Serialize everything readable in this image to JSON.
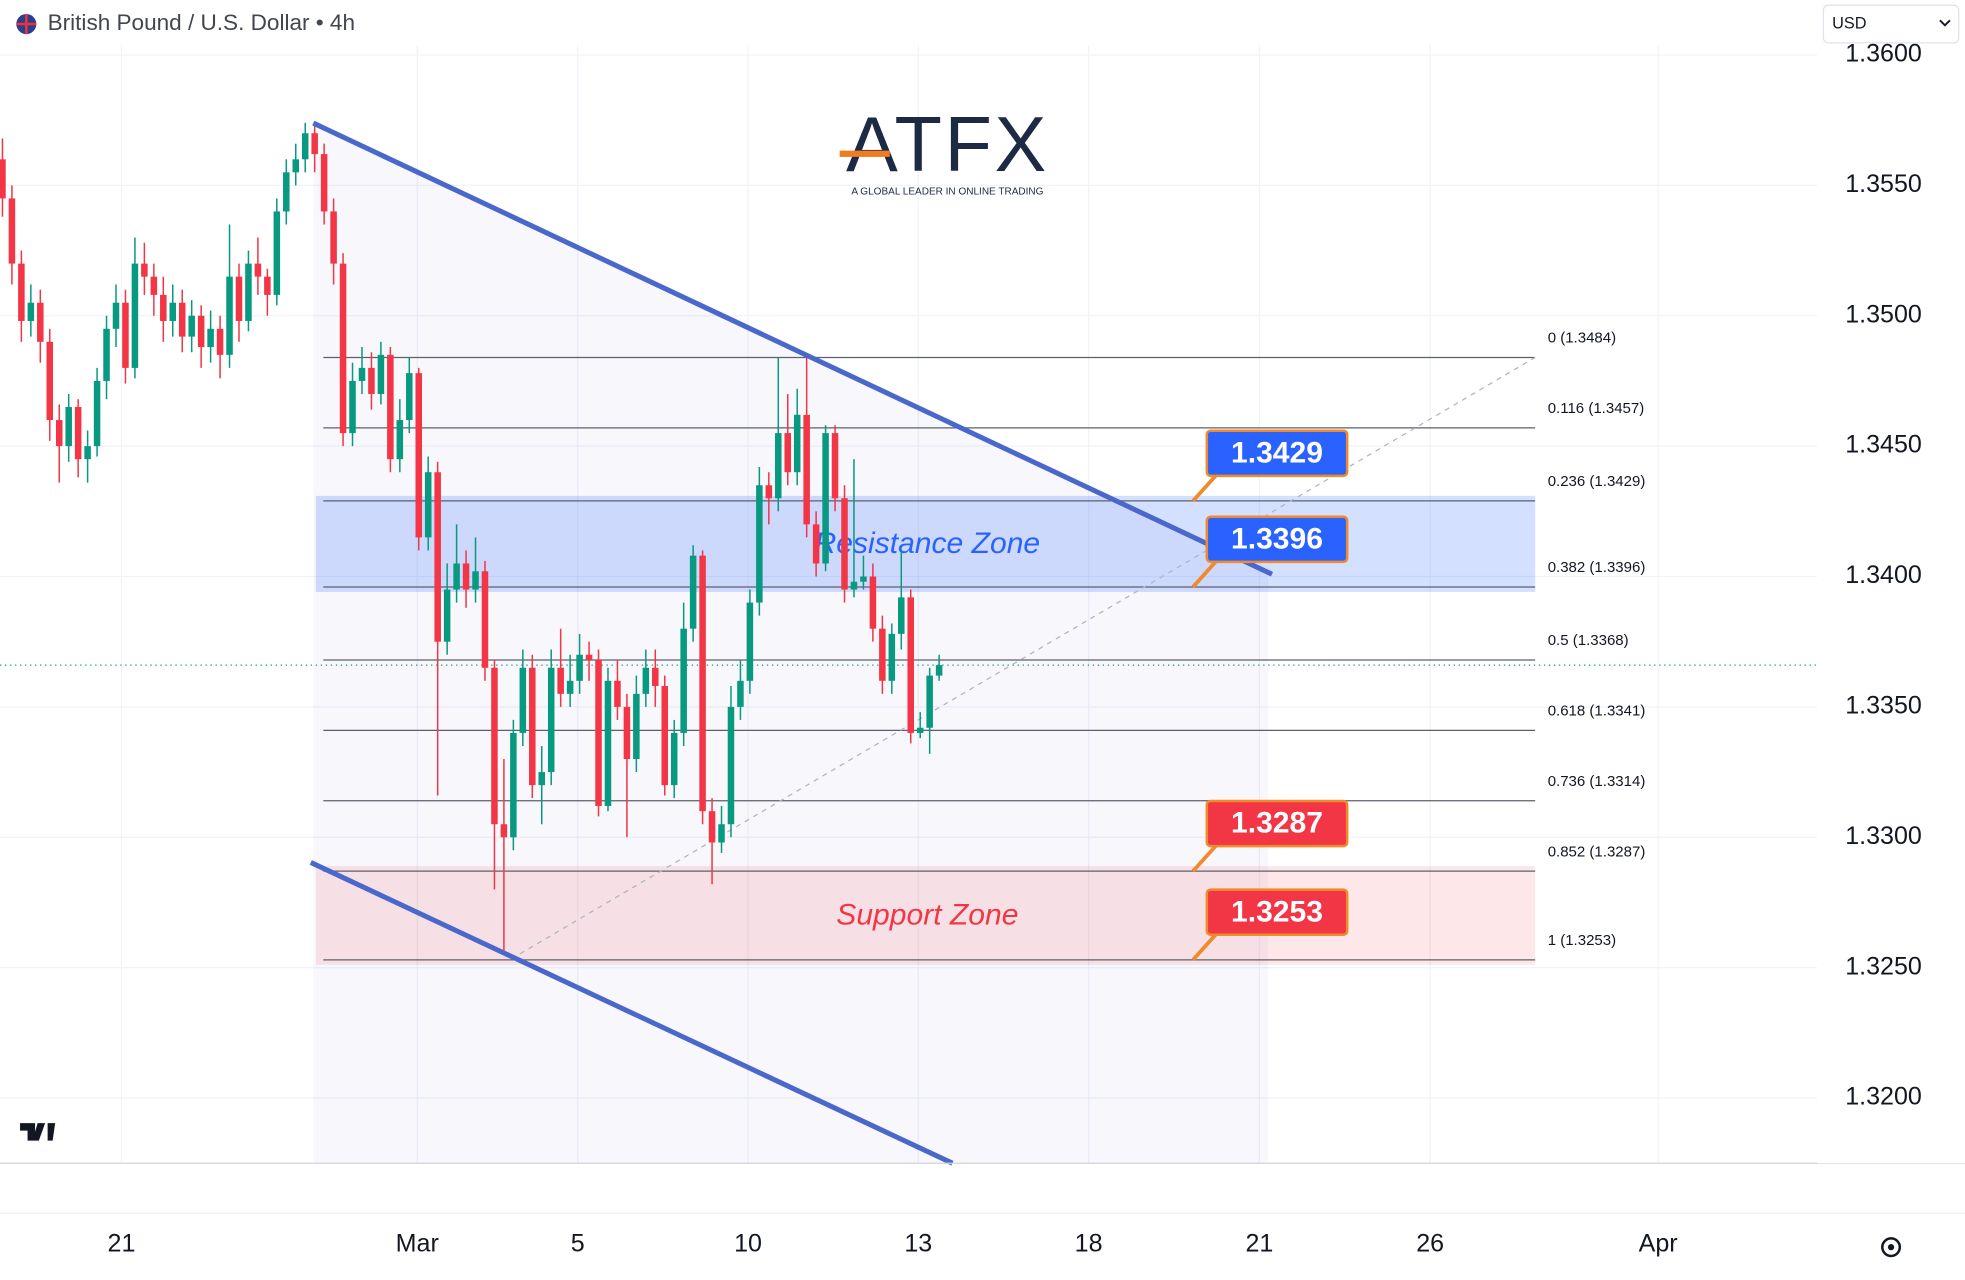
{
  "header": {
    "symbol": "British Pound / U.S. Dollar • 4h",
    "currency": "USD"
  },
  "logo": {
    "name": "ATFX",
    "tagline": "A GLOBAL LEADER IN ONLINE TRADING"
  },
  "chart_data": {
    "type": "candlestick",
    "open": [
      1.356,
      1.3545,
      1.352,
      1.3498,
      1.3505,
      1.349,
      1.346,
      1.345,
      1.3465,
      1.3445,
      1.345,
      1.3475,
      1.3495,
      1.3505,
      1.348,
      1.352,
      1.3515,
      1.3508,
      1.3498,
      1.3505,
      1.3492,
      1.35,
      1.3488,
      1.3495,
      1.3485,
      1.3515,
      1.3498,
      1.352,
      1.3515,
      1.3508,
      1.354,
      1.3555,
      1.356,
      1.357,
      1.3562,
      1.354,
      1.352,
      1.3455,
      1.3475,
      1.348,
      1.347,
      1.3485,
      1.3445,
      1.346,
      1.3478,
      1.3415,
      1.344,
      1.3375,
      1.3395,
      1.3405,
      1.3395,
      1.3402,
      1.3365,
      1.3305,
      1.33,
      1.334,
      1.3365,
      1.332,
      1.3325,
      1.3365,
      1.3355,
      1.336,
      1.337,
      1.3368,
      1.3312,
      1.336,
      1.335,
      1.333,
      1.3355,
      1.3365,
      1.3358,
      1.332,
      1.334,
      1.338,
      1.3408,
      1.331,
      1.3298,
      1.3305,
      1.335,
      1.336,
      1.339,
      1.3435,
      1.343,
      1.3455,
      1.344,
      1.3462,
      1.342,
      1.3405,
      1.3455,
      1.343,
      1.3395,
      1.3398,
      1.34,
      1.338,
      1.336,
      1.3378,
      1.3392,
      1.334,
      1.3342,
      1.3362
    ],
    "high": [
      1.3568,
      1.355,
      1.3525,
      1.3512,
      1.351,
      1.3495,
      1.3466,
      1.347,
      1.3468,
      1.3456,
      1.348,
      1.35,
      1.3512,
      1.351,
      1.353,
      1.3528,
      1.352,
      1.3515,
      1.3512,
      1.351,
      1.3506,
      1.3504,
      1.3502,
      1.35,
      1.3535,
      1.352,
      1.3525,
      1.353,
      1.3518,
      1.3545,
      1.356,
      1.3566,
      1.3574,
      1.3574,
      1.3566,
      1.3545,
      1.3524,
      1.3482,
      1.3488,
      1.3486,
      1.349,
      1.3488,
      1.3468,
      1.3484,
      1.348,
      1.3446,
      1.3444,
      1.3405,
      1.342,
      1.341,
      1.3415,
      1.3406,
      1.3368,
      1.333,
      1.3345,
      1.3372,
      1.337,
      1.3335,
      1.3372,
      1.338,
      1.337,
      1.3378,
      1.3375,
      1.3372,
      1.3365,
      1.3368,
      1.3355,
      1.3362,
      1.3372,
      1.3372,
      1.3362,
      1.3345,
      1.339,
      1.3412,
      1.341,
      1.3315,
      1.3312,
      1.3358,
      1.3368,
      1.3395,
      1.3442,
      1.344,
      1.3484,
      1.347,
      1.3472,
      1.3484,
      1.3425,
      1.3458,
      1.3458,
      1.3435,
      1.3445,
      1.3408,
      1.3405,
      1.3385,
      1.3382,
      1.341,
      1.3395,
      1.3348,
      1.3365,
      1.337
    ],
    "low": [
      1.3538,
      1.3512,
      1.349,
      1.3492,
      1.3482,
      1.3452,
      1.3436,
      1.3444,
      1.3438,
      1.3436,
      1.3446,
      1.3468,
      1.3488,
      1.3474,
      1.3476,
      1.3508,
      1.35,
      1.349,
      1.3492,
      1.3486,
      1.3486,
      1.348,
      1.3482,
      1.3476,
      1.348,
      1.349,
      1.3494,
      1.3508,
      1.35,
      1.3504,
      1.3535,
      1.355,
      1.3555,
      1.3555,
      1.3535,
      1.3512,
      1.345,
      1.345,
      1.347,
      1.3464,
      1.3466,
      1.344,
      1.344,
      1.3455,
      1.341,
      1.341,
      1.3316,
      1.337,
      1.339,
      1.3388,
      1.339,
      1.336,
      1.328,
      1.3256,
      1.3295,
      1.3335,
      1.3315,
      1.3305,
      1.332,
      1.335,
      1.335,
      1.3355,
      1.336,
      1.3308,
      1.331,
      1.3345,
      1.33,
      1.3325,
      1.335,
      1.335,
      1.3316,
      1.3315,
      1.3335,
      1.3375,
      1.3305,
      1.3282,
      1.3294,
      1.33,
      1.3345,
      1.3355,
      1.3385,
      1.342,
      1.3425,
      1.3435,
      1.3435,
      1.3415,
      1.34,
      1.3402,
      1.3425,
      1.339,
      1.3392,
      1.3395,
      1.3375,
      1.3355,
      1.3355,
      1.3372,
      1.3336,
      1.3338,
      1.3332,
      1.336
    ],
    "close": [
      1.3545,
      1.352,
      1.3498,
      1.3505,
      1.349,
      1.346,
      1.345,
      1.3465,
      1.3445,
      1.345,
      1.3475,
      1.3495,
      1.3505,
      1.348,
      1.352,
      1.3515,
      1.3508,
      1.3498,
      1.3505,
      1.3492,
      1.35,
      1.3488,
      1.3495,
      1.3485,
      1.3515,
      1.3498,
      1.352,
      1.3515,
      1.3508,
      1.354,
      1.3555,
      1.356,
      1.357,
      1.3562,
      1.354,
      1.352,
      1.3455,
      1.3475,
      1.348,
      1.347,
      1.3485,
      1.3445,
      1.346,
      1.3478,
      1.3415,
      1.344,
      1.3375,
      1.3395,
      1.3405,
      1.3395,
      1.3402,
      1.3365,
      1.3305,
      1.33,
      1.334,
      1.3365,
      1.332,
      1.3325,
      1.3365,
      1.3355,
      1.336,
      1.337,
      1.3368,
      1.3312,
      1.336,
      1.335,
      1.333,
      1.3355,
      1.3365,
      1.3358,
      1.332,
      1.334,
      1.338,
      1.3408,
      1.331,
      1.3298,
      1.3305,
      1.335,
      1.336,
      1.339,
      1.3435,
      1.343,
      1.3455,
      1.344,
      1.3462,
      1.342,
      1.3405,
      1.3455,
      1.343,
      1.3395,
      1.3398,
      1.34,
      1.338,
      1.336,
      1.3378,
      1.3392,
      1.334,
      1.3342,
      1.3362,
      1.3366
    ],
    "up_color": "#089981",
    "down_color": "#f23645",
    "xlim": [
      -0.26,
      191.8
    ],
    "xticks": [
      {
        "value": 12.58,
        "label": "21"
      },
      {
        "value": 43.84,
        "label": "Mar"
      },
      {
        "value": 60.8,
        "label": "5"
      },
      {
        "value": 78.8,
        "label": "10"
      },
      {
        "value": 96.8,
        "label": "13"
      },
      {
        "value": 114.8,
        "label": "18"
      },
      {
        "value": 132.85,
        "label": "21"
      },
      {
        "value": 150.9,
        "label": "26"
      },
      {
        "value": 175,
        "label": "Apr"
      }
    ],
    "ylim": [
      1.3175,
      1.3621
    ],
    "yticks": [
      {
        "value": 1.36,
        "label": "1.3600"
      },
      {
        "value": 1.355,
        "label": "1.3550"
      },
      {
        "value": 1.35,
        "label": "1.3500"
      },
      {
        "value": 1.345,
        "label": "1.3450"
      },
      {
        "value": 1.34,
        "label": "1.3400"
      },
      {
        "value": 1.335,
        "label": "1.3350"
      },
      {
        "value": 1.33,
        "label": "1.3300"
      },
      {
        "value": 1.325,
        "label": "1.3250"
      },
      {
        "value": 1.32,
        "label": "1.3200"
      }
    ],
    "grid": true,
    "last_price": 1.3366,
    "fib_levels": [
      {
        "label": "0 (1.3484)",
        "value": 1.3484
      },
      {
        "label": "0.116 (1.3457)",
        "value": 1.3457
      },
      {
        "label": "0.236 (1.3429)",
        "value": 1.3429
      },
      {
        "label": "0.382 (1.3396)",
        "value": 1.3396
      },
      {
        "label": "0.5 (1.3368)",
        "value": 1.3368
      },
      {
        "label": "0.618 (1.3341)",
        "value": 1.3341
      },
      {
        "label": "0.736 (1.3314)",
        "value": 1.3314
      },
      {
        "label": "0.852 (1.3287)",
        "value": 1.3287
      },
      {
        "label": "1 (1.3253)",
        "value": 1.3253
      }
    ],
    "zones": [
      {
        "label": "Resistance Zone",
        "low": 1.3396,
        "high": 1.3429,
        "color": "#2962ff"
      },
      {
        "label": "Support Zone",
        "low": 1.3253,
        "high": 1.3287,
        "color": "#f23645"
      }
    ]
  }
}
